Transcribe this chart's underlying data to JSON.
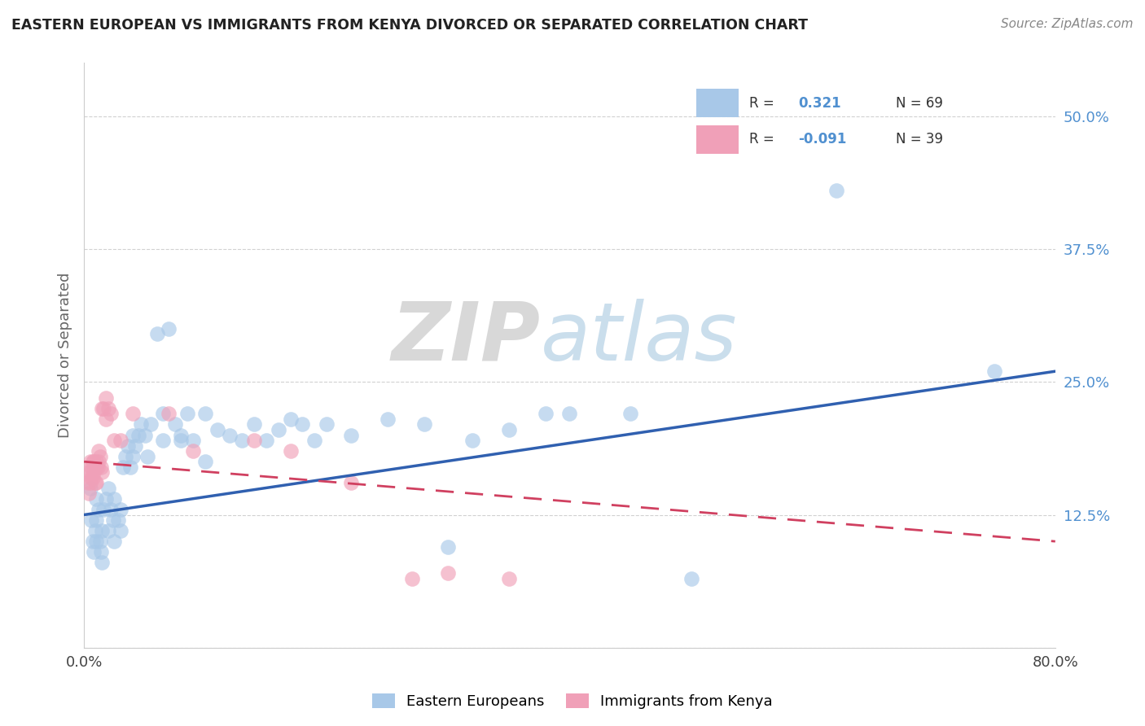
{
  "title": "EASTERN EUROPEAN VS IMMIGRANTS FROM KENYA DIVORCED OR SEPARATED CORRELATION CHART",
  "source": "Source: ZipAtlas.com",
  "ylabel": "Divorced or Separated",
  "xlim": [
    0.0,
    0.8
  ],
  "ylim": [
    0.0,
    0.55
  ],
  "legend_blue_r": "R =  0.321",
  "legend_blue_n": "N = 69",
  "legend_pink_r": "R = -0.091",
  "legend_pink_n": "N = 39",
  "blue_color": "#A8C8E8",
  "pink_color": "#F0A0B8",
  "blue_line_color": "#3060B0",
  "pink_line_color": "#D04060",
  "tick_label_color": "#5090D0",
  "blue_scatter_x": [
    0.005,
    0.006,
    0.007,
    0.008,
    0.009,
    0.01,
    0.01,
    0.01,
    0.012,
    0.013,
    0.014,
    0.015,
    0.015,
    0.016,
    0.018,
    0.02,
    0.02,
    0.022,
    0.024,
    0.025,
    0.025,
    0.028,
    0.03,
    0.03,
    0.032,
    0.034,
    0.036,
    0.038,
    0.04,
    0.04,
    0.042,
    0.045,
    0.047,
    0.05,
    0.052,
    0.055,
    0.06,
    0.065,
    0.065,
    0.07,
    0.075,
    0.08,
    0.08,
    0.085,
    0.09,
    0.1,
    0.1,
    0.11,
    0.12,
    0.13,
    0.14,
    0.15,
    0.16,
    0.17,
    0.18,
    0.19,
    0.2,
    0.22,
    0.25,
    0.28,
    0.3,
    0.32,
    0.35,
    0.38,
    0.4,
    0.45,
    0.5,
    0.62,
    0.75
  ],
  "blue_scatter_y": [
    0.15,
    0.12,
    0.1,
    0.09,
    0.11,
    0.14,
    0.12,
    0.1,
    0.13,
    0.1,
    0.09,
    0.11,
    0.08,
    0.13,
    0.14,
    0.15,
    0.11,
    0.13,
    0.12,
    0.14,
    0.1,
    0.12,
    0.13,
    0.11,
    0.17,
    0.18,
    0.19,
    0.17,
    0.2,
    0.18,
    0.19,
    0.2,
    0.21,
    0.2,
    0.18,
    0.21,
    0.295,
    0.22,
    0.195,
    0.3,
    0.21,
    0.195,
    0.2,
    0.22,
    0.195,
    0.22,
    0.175,
    0.205,
    0.2,
    0.195,
    0.21,
    0.195,
    0.205,
    0.215,
    0.21,
    0.195,
    0.21,
    0.2,
    0.215,
    0.21,
    0.095,
    0.195,
    0.205,
    0.22,
    0.22,
    0.22,
    0.065,
    0.43,
    0.26
  ],
  "pink_scatter_x": [
    0.003,
    0.004,
    0.004,
    0.005,
    0.005,
    0.005,
    0.006,
    0.006,
    0.007,
    0.007,
    0.008,
    0.008,
    0.009,
    0.01,
    0.01,
    0.01,
    0.011,
    0.012,
    0.012,
    0.013,
    0.014,
    0.015,
    0.015,
    0.016,
    0.018,
    0.018,
    0.02,
    0.022,
    0.025,
    0.03,
    0.04,
    0.07,
    0.09,
    0.14,
    0.17,
    0.22,
    0.27,
    0.3,
    0.35
  ],
  "pink_scatter_y": [
    0.155,
    0.165,
    0.145,
    0.175,
    0.155,
    0.165,
    0.17,
    0.16,
    0.175,
    0.16,
    0.165,
    0.175,
    0.155,
    0.17,
    0.175,
    0.155,
    0.17,
    0.175,
    0.185,
    0.18,
    0.17,
    0.165,
    0.225,
    0.225,
    0.235,
    0.215,
    0.225,
    0.22,
    0.195,
    0.195,
    0.22,
    0.22,
    0.185,
    0.195,
    0.185,
    0.155,
    0.065,
    0.07,
    0.065
  ],
  "blue_line_x0": 0.0,
  "blue_line_y0": 0.125,
  "blue_line_x1": 0.8,
  "blue_line_y1": 0.26,
  "pink_line_x0": 0.0,
  "pink_line_y0": 0.175,
  "pink_line_x1": 0.8,
  "pink_line_y1": 0.1
}
